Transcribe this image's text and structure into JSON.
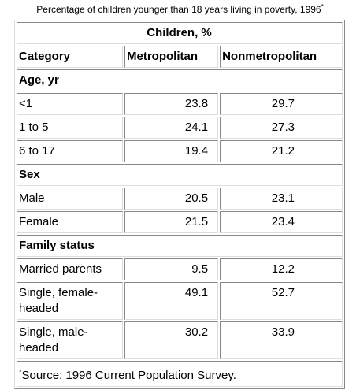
{
  "caption": {
    "text": "Percentage of children younger than 18 years living in poverty, 1996",
    "mark": "*"
  },
  "table": {
    "group_header": "Children, %",
    "columns": [
      "Category",
      "Metropolitan",
      "Nonmetropolitan"
    ],
    "sections": [
      {
        "title": "Age, yr",
        "rows": [
          [
            "<1",
            23.8,
            29.7
          ],
          [
            "1 to 5",
            24.1,
            27.3
          ],
          [
            "6 to 17",
            19.4,
            21.2
          ]
        ]
      },
      {
        "title": "Sex",
        "rows": [
          [
            "Male",
            20.5,
            23.1
          ],
          [
            "Female",
            21.5,
            23.4
          ]
        ]
      },
      {
        "title": "Family status",
        "rows": [
          [
            "Married parents",
            9.5,
            12.2
          ],
          [
            "Single, female-headed",
            49.1,
            52.7
          ],
          [
            "Single, male-headed",
            30.2,
            33.9
          ]
        ]
      }
    ]
  },
  "footnote": {
    "mark": "*",
    "text": "Source: 1996 Current Population Survey."
  }
}
